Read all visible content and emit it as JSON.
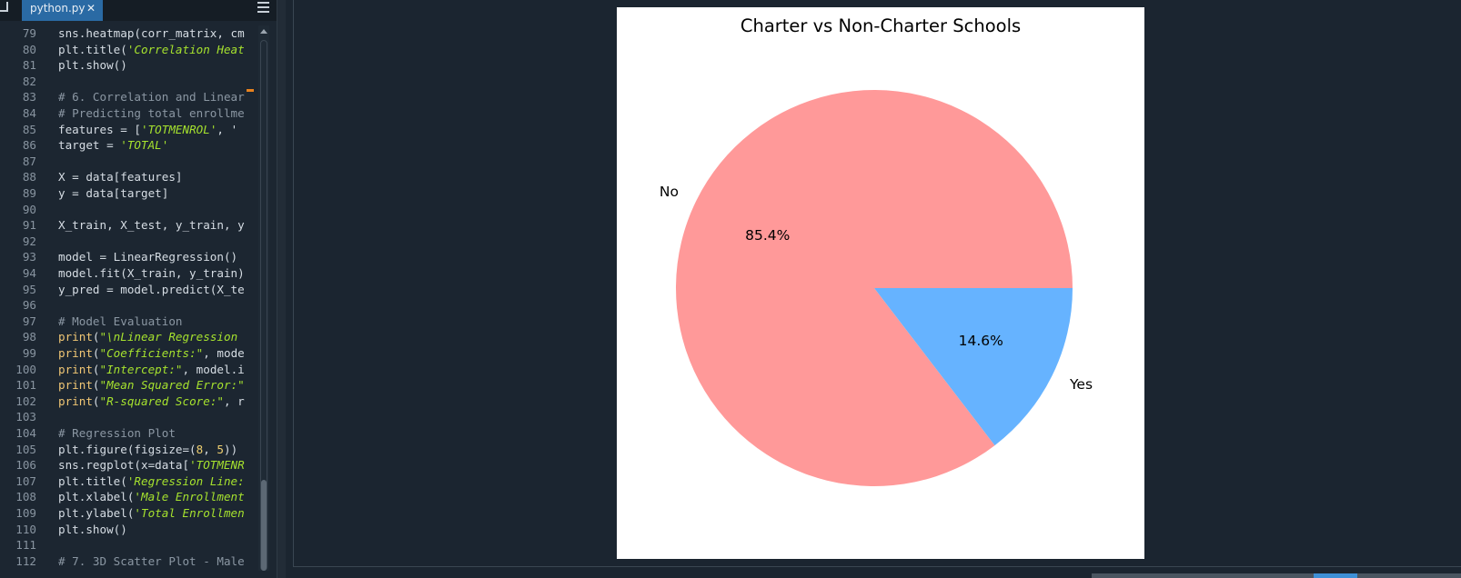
{
  "editor": {
    "tab": {
      "label": "python.py",
      "close": "✕"
    },
    "lines": [
      {
        "n": "79",
        "tokens": [
          [
            "sns.heatmap(corr_matrix, cm",
            "plain"
          ]
        ]
      },
      {
        "n": "80",
        "tokens": [
          [
            "plt.title(",
            "plain"
          ],
          [
            "'Correlation Heat",
            "str"
          ]
        ]
      },
      {
        "n": "81",
        "tokens": [
          [
            "plt.show()",
            "plain"
          ]
        ]
      },
      {
        "n": "82",
        "tokens": []
      },
      {
        "n": "83",
        "tokens": [
          [
            "# 6. Correlation and Linear",
            "comment"
          ]
        ]
      },
      {
        "n": "84",
        "tokens": [
          [
            "# Predicting total enrollme",
            "comment"
          ]
        ]
      },
      {
        "n": "85",
        "tokens": [
          [
            "features = [",
            "plain"
          ],
          [
            "'TOTMENROL'",
            "str"
          ],
          [
            ", '",
            "plain"
          ]
        ]
      },
      {
        "n": "86",
        "tokens": [
          [
            "target = ",
            "plain"
          ],
          [
            "'TOTAL'",
            "str"
          ]
        ]
      },
      {
        "n": "87",
        "tokens": []
      },
      {
        "n": "88",
        "tokens": [
          [
            "X = data[features]",
            "plain"
          ]
        ]
      },
      {
        "n": "89",
        "tokens": [
          [
            "y = data[target]",
            "plain"
          ]
        ]
      },
      {
        "n": "90",
        "tokens": []
      },
      {
        "n": "91",
        "tokens": [
          [
            "X_train, X_test, y_train, y",
            "plain"
          ]
        ]
      },
      {
        "n": "92",
        "tokens": []
      },
      {
        "n": "93",
        "tokens": [
          [
            "model = LinearRegression()",
            "plain"
          ]
        ]
      },
      {
        "n": "94",
        "tokens": [
          [
            "model.fit(X_train, y_train)",
            "plain"
          ]
        ]
      },
      {
        "n": "95",
        "tokens": [
          [
            "y_pred = model.predict(X_te",
            "plain"
          ]
        ]
      },
      {
        "n": "96",
        "tokens": []
      },
      {
        "n": "97",
        "tokens": [
          [
            "# Model Evaluation",
            "comment"
          ]
        ]
      },
      {
        "n": "98",
        "tokens": [
          [
            "print",
            "kw"
          ],
          [
            "(",
            "plain"
          ],
          [
            "\"\\nLinear Regression",
            "str"
          ]
        ]
      },
      {
        "n": "99",
        "tokens": [
          [
            "print",
            "kw"
          ],
          [
            "(",
            "plain"
          ],
          [
            "\"Coefficients:\"",
            "str"
          ],
          [
            ", mode",
            "plain"
          ]
        ]
      },
      {
        "n": "100",
        "tokens": [
          [
            "print",
            "kw"
          ],
          [
            "(",
            "plain"
          ],
          [
            "\"Intercept:\"",
            "str"
          ],
          [
            ", model.i",
            "plain"
          ]
        ]
      },
      {
        "n": "101",
        "tokens": [
          [
            "print",
            "kw"
          ],
          [
            "(",
            "plain"
          ],
          [
            "\"Mean Squared Error:\"",
            "str"
          ]
        ]
      },
      {
        "n": "102",
        "tokens": [
          [
            "print",
            "kw"
          ],
          [
            "(",
            "plain"
          ],
          [
            "\"R-squared Score:\"",
            "str"
          ],
          [
            ", r",
            "plain"
          ]
        ]
      },
      {
        "n": "103",
        "tokens": []
      },
      {
        "n": "104",
        "tokens": [
          [
            "# Regression Plot",
            "comment"
          ]
        ]
      },
      {
        "n": "105",
        "tokens": [
          [
            "plt.figure(figsize=(",
            "plain"
          ],
          [
            "8",
            "num"
          ],
          [
            ", ",
            "plain"
          ],
          [
            "5",
            "num"
          ],
          [
            "))",
            "plain"
          ]
        ]
      },
      {
        "n": "106",
        "tokens": [
          [
            "sns.regplot(x=data[",
            "plain"
          ],
          [
            "'TOTMENR",
            "str"
          ]
        ]
      },
      {
        "n": "107",
        "tokens": [
          [
            "plt.title(",
            "plain"
          ],
          [
            "'Regression Line:",
            "str"
          ]
        ]
      },
      {
        "n": "108",
        "tokens": [
          [
            "plt.xlabel(",
            "plain"
          ],
          [
            "'Male Enrollment",
            "str"
          ]
        ]
      },
      {
        "n": "109",
        "tokens": [
          [
            "plt.ylabel(",
            "plain"
          ],
          [
            "'Total Enrollmen",
            "str"
          ]
        ]
      },
      {
        "n": "110",
        "tokens": [
          [
            "plt.show()",
            "plain"
          ]
        ]
      },
      {
        "n": "111",
        "tokens": []
      },
      {
        "n": "112",
        "tokens": [
          [
            "# 7. 3D Scatter Plot - Male",
            "comment"
          ]
        ]
      }
    ]
  },
  "chart_data": {
    "type": "pie",
    "title": "Charter vs Non-Charter Schools",
    "categories": [
      "No",
      "Yes"
    ],
    "values": [
      85.4,
      14.6
    ],
    "labels": [
      "85.4%",
      "14.6%"
    ],
    "colors": [
      "#ff9999",
      "#66b3ff"
    ],
    "start_angle_deg": 0
  }
}
